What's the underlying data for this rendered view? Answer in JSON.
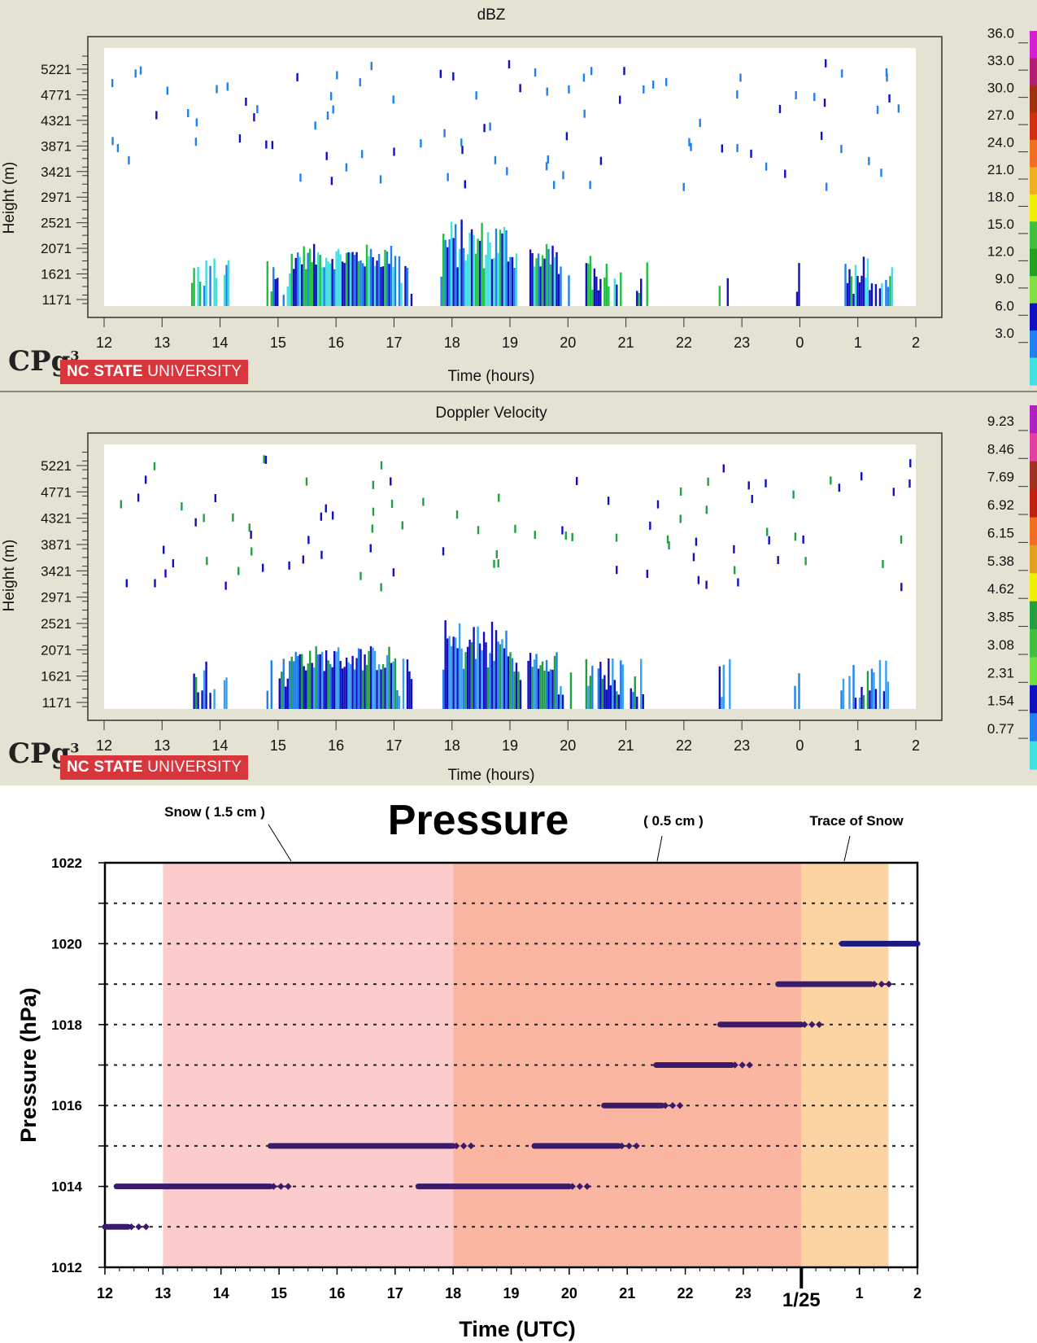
{
  "chart_data": [
    {
      "type": "heatmap",
      "title": "dBZ",
      "xlabel": "Time (hours)",
      "ylabel": "Height (m)",
      "x_ticks": [
        "12",
        "13",
        "14",
        "15",
        "16",
        "17",
        "18",
        "19",
        "20",
        "21",
        "22",
        "23",
        "0",
        "1",
        "2"
      ],
      "y_ticks": [
        "5221",
        "4771",
        "4321",
        "3871",
        "3421",
        "2971",
        "2521",
        "2071",
        "1621",
        "1171"
      ],
      "colorbar_ticks": [
        "36.0",
        "33.0",
        "30.0",
        "27.0",
        "24.0",
        "21.0",
        "18.0",
        "15.0",
        "12.0",
        "9.0",
        "6.0",
        "3.0"
      ],
      "colorbar_colors": [
        "#d020d0",
        "#b02070",
        "#a03010",
        "#d03010",
        "#f07020",
        "#f0b020",
        "#f0f000",
        "#40c040",
        "#20a020",
        "#80e040",
        "#1010c0",
        "#2080f0",
        "#40e0e0"
      ],
      "echo_periods_hours": [
        [
          13.5,
          14.2
        ],
        [
          14.8,
          17.3
        ],
        [
          17.8,
          19.2
        ],
        [
          19.3,
          20.1
        ],
        [
          20.3,
          21.4
        ],
        [
          22.6,
          22.8
        ],
        [
          23.9,
          24.0
        ],
        [
          24.7,
          25.6
        ]
      ],
      "echo_top_m": 2600
    },
    {
      "type": "heatmap",
      "title": "Doppler Velocity",
      "xlabel": "Time (hours)",
      "ylabel": "Height (m)",
      "x_ticks": [
        "12",
        "13",
        "14",
        "15",
        "16",
        "17",
        "18",
        "19",
        "20",
        "21",
        "22",
        "23",
        "0",
        "1",
        "2"
      ],
      "y_ticks": [
        "5221",
        "4771",
        "4321",
        "3871",
        "3421",
        "2971",
        "2521",
        "2071",
        "1621",
        "1171"
      ],
      "colorbar_ticks": [
        "9.23",
        "8.46",
        "7.69",
        "6.92",
        "6.15",
        "5.38",
        "4.62",
        "3.85",
        "3.08",
        "2.31",
        "1.54",
        "0.77"
      ],
      "colorbar_colors": [
        "#b020c0",
        "#e040a0",
        "#a03020",
        "#c02010",
        "#f07020",
        "#e0a020",
        "#f0f000",
        "#20a040",
        "#40c040",
        "#70e040",
        "#1010c0",
        "#2080f0",
        "#40e0e0"
      ]
    },
    {
      "type": "scatter",
      "title": "Pressure",
      "xlabel": "Time (UTC)",
      "ylabel": "Pressure (hPa)",
      "x_ticks": [
        "12",
        "13",
        "14",
        "15",
        "16",
        "17",
        "18",
        "19",
        "20",
        "21",
        "22",
        "23",
        "1/25",
        "1",
        "2"
      ],
      "y_ticks": [
        "1022",
        "1020",
        "1018",
        "1016",
        "1014",
        "1012"
      ],
      "ylim": [
        1012,
        1022
      ],
      "xlim_hours": [
        12,
        26
      ],
      "grid": "horizontal dotted",
      "shaded_periods": [
        {
          "label": "Snow  ( 1.5 cm )",
          "start": 13,
          "end": 18,
          "color": "#fccbcb"
        },
        {
          "label": "( 0.5 cm )",
          "start": 18,
          "end": 24,
          "color": "#fbb6a2"
        },
        {
          "label": "Trace of Snow",
          "start": 24,
          "end": 25.5,
          "color": "#fcd3a3"
        }
      ],
      "series": [
        {
          "values": [
            {
              "x_start": 12.0,
              "x_end": 12.4,
              "y": 1013
            },
            {
              "x_start": 12.2,
              "x_end": 14.85,
              "y": 1014
            },
            {
              "x_start": 14.85,
              "x_end": 18.0,
              "y": 1015
            },
            {
              "x_start": 17.4,
              "x_end": 20.0,
              "y": 1014
            },
            {
              "x_start": 19.4,
              "x_end": 20.85,
              "y": 1015
            },
            {
              "x_start": 20.6,
              "x_end": 21.6,
              "y": 1016
            },
            {
              "x_start": 21.5,
              "x_end": 22.8,
              "y": 1017
            },
            {
              "x_start": 22.6,
              "x_end": 24.0,
              "y": 1018
            },
            {
              "x_start": 23.6,
              "x_end": 25.2,
              "y": 1019
            },
            {
              "x_start": 24.7,
              "x_end": 26.0,
              "y": 1020
            }
          ]
        }
      ]
    }
  ],
  "logo": {
    "cp": "CPg",
    "cp_sup": "3",
    "university": "NC STATE",
    "university2": "UNIVERSITY"
  },
  "colors": {
    "panel_bg": "#e4e2d2",
    "point_color": "#3a1a6a",
    "point_color_end": "#1a1a80"
  }
}
